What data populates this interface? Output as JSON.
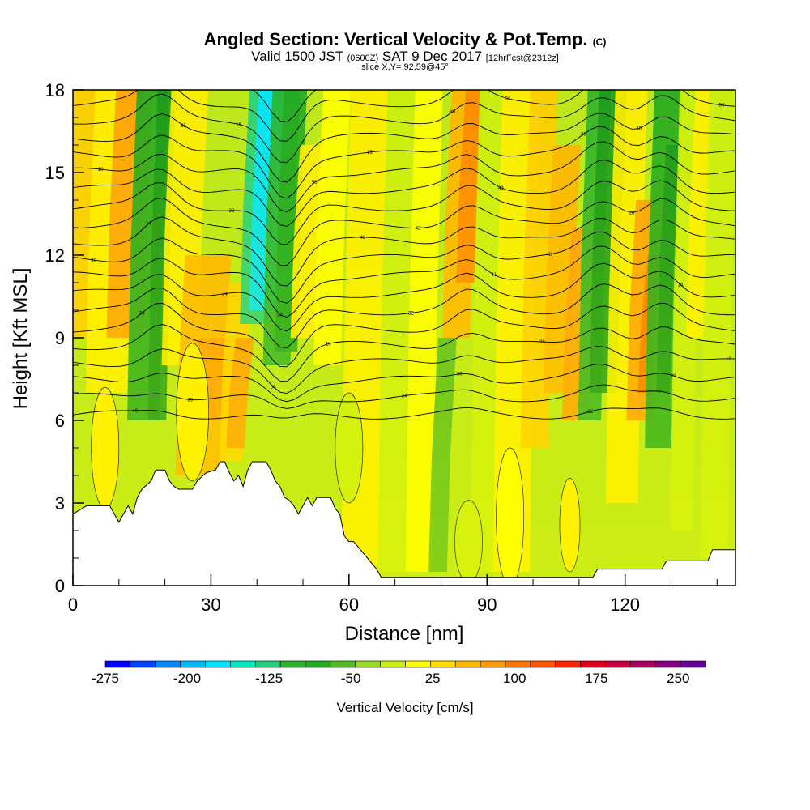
{
  "header": {
    "title": "Angled Section: Vertical Velocity & Pot.Temp.",
    "title_mark": "(C)",
    "valid_main": "Valid 1500 JST",
    "valid_utc": "(0600Z)",
    "valid_date": "SAT 9 Dec 2017",
    "forecast": "[12hrFcst@2312z]",
    "slice": "slice X,Y= 92,59@45°"
  },
  "chart_data": {
    "type": "heatmap",
    "title": "Angled Section: Vertical Velocity & Pot.Temp.",
    "xlabel": "Distance [nm]",
    "ylabel": "Height [Kft MSL]",
    "xlim": [
      0,
      144
    ],
    "ylim": [
      0,
      18
    ],
    "x_ticks": [
      0,
      30,
      60,
      90,
      120
    ],
    "y_ticks": [
      0,
      3,
      6,
      9,
      12,
      15,
      18
    ],
    "colorbar": {
      "label": "Vertical Velocity [cm/s]",
      "range": [
        -275,
        275
      ],
      "tick_values": [
        -275,
        -200,
        -125,
        -50,
        25,
        100,
        175,
        250
      ],
      "colors": [
        "#0000ff",
        "#0044ff",
        "#0088ff",
        "#00bbff",
        "#00e5ff",
        "#00e8c0",
        "#22d080",
        "#2cb22c",
        "#22aa22",
        "#55bb22",
        "#99dd22",
        "#ccee11",
        "#ffff00",
        "#ffdd00",
        "#ffbb00",
        "#ff9900",
        "#ff7700",
        "#ff5500",
        "#ff2200",
        "#e60020",
        "#c80040",
        "#aa0060",
        "#880080",
        "#660099"
      ]
    },
    "terrain_kft": [
      [
        0,
        2.6
      ],
      [
        3,
        2.9
      ],
      [
        8,
        2.9
      ],
      [
        9,
        2.6
      ],
      [
        10,
        2.3
      ],
      [
        11,
        2.6
      ],
      [
        12,
        2.9
      ],
      [
        13,
        2.6
      ],
      [
        14,
        3.2
      ],
      [
        15,
        3.5
      ],
      [
        17,
        3.8
      ],
      [
        18,
        4.2
      ],
      [
        20,
        4.2
      ],
      [
        21,
        3.8
      ],
      [
        22,
        3.6
      ],
      [
        23,
        3.5
      ],
      [
        26,
        3.5
      ],
      [
        27,
        3.8
      ],
      [
        29,
        4.1
      ],
      [
        31,
        4.2
      ],
      [
        32,
        4.5
      ],
      [
        33,
        4.5
      ],
      [
        34,
        4.1
      ],
      [
        35,
        3.8
      ],
      [
        36,
        4.0
      ],
      [
        37,
        3.6
      ],
      [
        38,
        4.2
      ],
      [
        39,
        4.5
      ],
      [
        42,
        4.5
      ],
      [
        43,
        4.2
      ],
      [
        44,
        3.8
      ],
      [
        45,
        3.6
      ],
      [
        46,
        3.2
      ],
      [
        47,
        3.1
      ],
      [
        48,
        2.9
      ],
      [
        49,
        2.6
      ],
      [
        50,
        2.9
      ],
      [
        51,
        3.2
      ],
      [
        52,
        2.9
      ],
      [
        53,
        3.2
      ],
      [
        56,
        3.2
      ],
      [
        57,
        2.8
      ],
      [
        58,
        2.6
      ],
      [
        59,
        1.8
      ],
      [
        60,
        1.6
      ],
      [
        61,
        1.6
      ],
      [
        63,
        1.2
      ],
      [
        65,
        0.8
      ],
      [
        66,
        0.6
      ],
      [
        67,
        0.3
      ],
      [
        68,
        0.3
      ],
      [
        85,
        0.3
      ],
      [
        104,
        0.3
      ],
      [
        106,
        0.3
      ],
      [
        113,
        0.3
      ],
      [
        114,
        0.6
      ],
      [
        119,
        0.6
      ],
      [
        128,
        0.6
      ],
      [
        129,
        0.9
      ],
      [
        138,
        0.9
      ],
      [
        139,
        1.3
      ],
      [
        144,
        1.3
      ]
    ],
    "contour_labels": [
      "40",
      "34",
      "50",
      "34",
      "41",
      "38",
      "29",
      "30",
      "35",
      "60",
      "48",
      "40",
      "38",
      "28",
      "54",
      "36",
      "38",
      "36",
      "32",
      "49",
      "32",
      "16",
      "10",
      "30",
      "34",
      "15",
      "30",
      "40",
      "30",
      "12",
      "17",
      "16",
      "13",
      "42",
      "34"
    ]
  }
}
